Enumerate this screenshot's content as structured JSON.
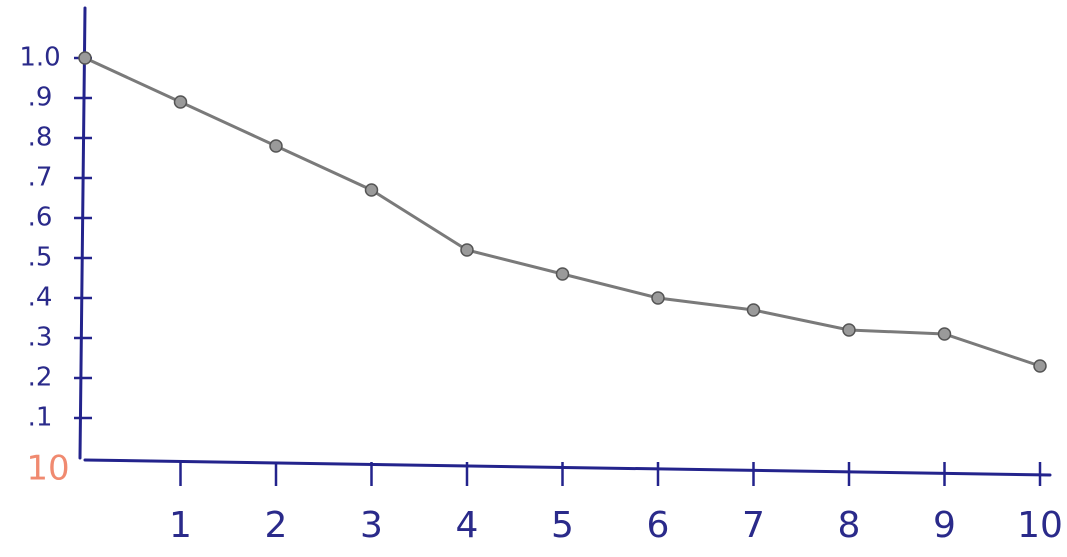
{
  "chart_data": {
    "type": "line",
    "x": [
      0,
      1,
      2,
      3,
      4,
      5,
      6,
      7,
      8,
      9,
      10
    ],
    "series": [
      {
        "color": "#7a7a7a",
        "values": [
          1.0,
          0.89,
          0.78,
          0.67,
          0.52,
          0.46,
          0.4,
          0.37,
          0.32,
          0.31,
          0.23
        ]
      }
    ],
    "xlim": [
      0,
      10
    ],
    "ylim": [
      0,
      1.12
    ],
    "xticks": [
      1,
      2,
      3,
      4,
      5,
      6,
      7,
      8,
      9,
      10
    ],
    "yticks": [
      {
        "value": 0.1,
        "label": ".1"
      },
      {
        "value": 0.2,
        "label": ".2"
      },
      {
        "value": 0.3,
        "label": ".3"
      },
      {
        "value": 0.4,
        "label": ".4"
      },
      {
        "value": 0.5,
        "label": ".5"
      },
      {
        "value": 0.6,
        "label": ".6"
      },
      {
        "value": 0.7,
        "label": ".7"
      },
      {
        "value": 0.8,
        "label": ".8"
      },
      {
        "value": 0.9,
        "label": ".9"
      },
      {
        "value": 1.0,
        "label": "1.0"
      }
    ],
    "annotation": "10"
  }
}
